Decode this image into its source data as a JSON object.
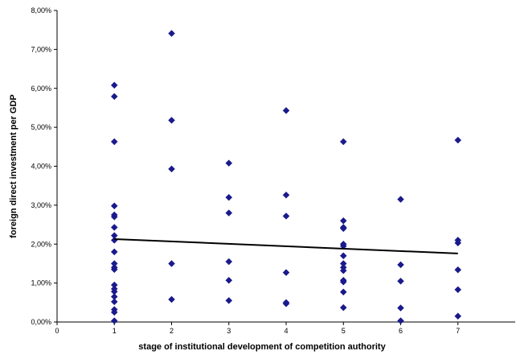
{
  "chart_data": {
    "type": "scatter",
    "title": "",
    "xlabel": "stage of institutional development of competition authority",
    "ylabel": "foreign direct investment per GDP",
    "xlim": [
      0,
      8
    ],
    "ylim": [
      0,
      0.08
    ],
    "x_ticks": [
      0,
      1,
      2,
      3,
      4,
      5,
      6,
      7
    ],
    "x_tick_labels": [
      "0",
      "1",
      "2",
      "3",
      "4",
      "5",
      "6",
      "7"
    ],
    "y_ticks": [
      0,
      0.01,
      0.02,
      0.03,
      0.04,
      0.05,
      0.06,
      0.07,
      0.08
    ],
    "y_tick_labels": [
      "0,00%",
      "1,00%",
      "2,00%",
      "3,00%",
      "4,00%",
      "5,00%",
      "6,00%",
      "7,00%",
      "8,00%"
    ],
    "grid": false,
    "legend": "none",
    "marker": "diamond",
    "marker_color": "#1a1a8c",
    "trendline_color": "#000000",
    "series": [
      {
        "points": [
          [
            1,
            0.0608
          ],
          [
            1,
            0.0579
          ],
          [
            1,
            0.0463
          ],
          [
            1,
            0.0298
          ],
          [
            1,
            0.0275
          ],
          [
            1,
            0.027
          ],
          [
            1,
            0.0243
          ],
          [
            1,
            0.0222
          ],
          [
            1,
            0.021
          ],
          [
            1,
            0.018
          ],
          [
            1,
            0.015
          ],
          [
            1,
            0.014
          ],
          [
            1,
            0.0135
          ],
          [
            1,
            0.0095
          ],
          [
            1,
            0.0085
          ],
          [
            1,
            0.0078
          ],
          [
            1,
            0.0065
          ],
          [
            1,
            0.0052
          ],
          [
            1,
            0.0032
          ],
          [
            1,
            0.0025
          ],
          [
            1,
            0.0003
          ],
          [
            2,
            0.0741
          ],
          [
            2,
            0.0518
          ],
          [
            2,
            0.0393
          ],
          [
            2,
            0.015
          ],
          [
            2,
            0.0058
          ],
          [
            3,
            0.0408
          ],
          [
            3,
            0.032
          ],
          [
            3,
            0.028
          ],
          [
            3,
            0.0155
          ],
          [
            3,
            0.0107
          ],
          [
            3,
            0.0055
          ],
          [
            4,
            0.0543
          ],
          [
            4,
            0.0326
          ],
          [
            4,
            0.0272
          ],
          [
            4,
            0.0127
          ],
          [
            4,
            0.005
          ],
          [
            4,
            0.0047
          ],
          [
            5,
            0.0463
          ],
          [
            5,
            0.026
          ],
          [
            5,
            0.0243
          ],
          [
            5,
            0.024
          ],
          [
            5,
            0.02
          ],
          [
            5,
            0.0195
          ],
          [
            5,
            0.017
          ],
          [
            5,
            0.015
          ],
          [
            5,
            0.014
          ],
          [
            5,
            0.0132
          ],
          [
            5,
            0.0107
          ],
          [
            5,
            0.0103
          ],
          [
            5,
            0.0077
          ],
          [
            5,
            0.0037
          ],
          [
            6,
            0.0315
          ],
          [
            6,
            0.0147
          ],
          [
            6,
            0.0105
          ],
          [
            6,
            0.0036
          ],
          [
            6,
            0.0003
          ],
          [
            7,
            0.0467
          ],
          [
            7,
            0.021
          ],
          [
            7,
            0.0203
          ],
          [
            7,
            0.0134
          ],
          [
            7,
            0.0083
          ],
          [
            7,
            0.0015
          ]
        ]
      }
    ],
    "trendline": {
      "x": [
        1,
        7
      ],
      "y": [
        0.0213,
        0.0176
      ]
    }
  }
}
